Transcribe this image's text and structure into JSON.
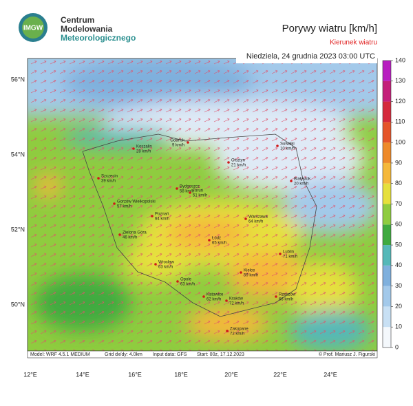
{
  "header": {
    "logo": "IMGW",
    "org": [
      "Centrum",
      "Modelowania",
      "Meteorologicznego"
    ],
    "title": "Porywy wiatru [km/h]",
    "subtitle": "Kierunek wiatru",
    "date": "Niedziela, 24 grudnia 2023 03:00 UTC"
  },
  "map": {
    "lat_labels": [
      "56°N",
      "54°N",
      "52°N",
      "50°N"
    ],
    "lon_labels": [
      "12°E",
      "14°E",
      "16°E",
      "18°E",
      "20°E",
      "22°E",
      "24°E"
    ],
    "cities": [
      {
        "name": "Koszalin",
        "speed": "28 km/h"
      },
      {
        "name": "Gdańsk",
        "speed": "9 km/h"
      },
      {
        "name": "Suwałki",
        "speed": "10 km/h"
      },
      {
        "name": "Olsztyn",
        "speed": "21 km/h"
      },
      {
        "name": "Szczecin",
        "speed": "39 km/h"
      },
      {
        "name": "Bydgoszcz",
        "speed": "58 km/h"
      },
      {
        "name": "Toruń",
        "speed": "51 km/h"
      },
      {
        "name": "Białystok",
        "speed": "20 km/h"
      },
      {
        "name": "Gorzów Wielkopolski",
        "speed": "57 km/h"
      },
      {
        "name": "Poznań",
        "speed": "64 km/h"
      },
      {
        "name": "Warszawa",
        "speed": "64 km/h"
      },
      {
        "name": "Zielona Góra",
        "speed": "46 km/h"
      },
      {
        "name": "Łódź",
        "speed": "65 km/h"
      },
      {
        "name": "Lublin",
        "speed": "71 km/h"
      },
      {
        "name": "Wrocław",
        "speed": "63 km/h"
      },
      {
        "name": "Kielce",
        "speed": "59 km/h"
      },
      {
        "name": "Opole",
        "speed": "63 km/h"
      },
      {
        "name": "Katowice",
        "speed": "62 km/h"
      },
      {
        "name": "Rzeszów",
        "speed": "66 km/h"
      },
      {
        "name": "Kraków",
        "speed": "72 km/h"
      },
      {
        "name": "Zakopane",
        "speed": "72 km/h"
      }
    ]
  },
  "colorbar": {
    "ticks": [
      0,
      10,
      20,
      30,
      40,
      50,
      60,
      70,
      80,
      90,
      100,
      110,
      120,
      130,
      140
    ],
    "colors": [
      "#f4f8fc",
      "#c8e0f4",
      "#a3c9ea",
      "#7fb0dd",
      "#55b8b8",
      "#3faa3f",
      "#8fcc3f",
      "#e6e03c",
      "#f5b83a",
      "#ee8a2a",
      "#e5552a",
      "#d52a3c",
      "#c4207a",
      "#b81ec0"
    ]
  },
  "footer": {
    "model": "Model: WRF 4.5.1 MEDIUM",
    "grid": "Grid dx/dy: 4.0km",
    "input": "Input data: GFS",
    "start": "Start: 00z, 17.12.2023",
    "copyright": "© Prof. Mariusz J. Figurski"
  }
}
